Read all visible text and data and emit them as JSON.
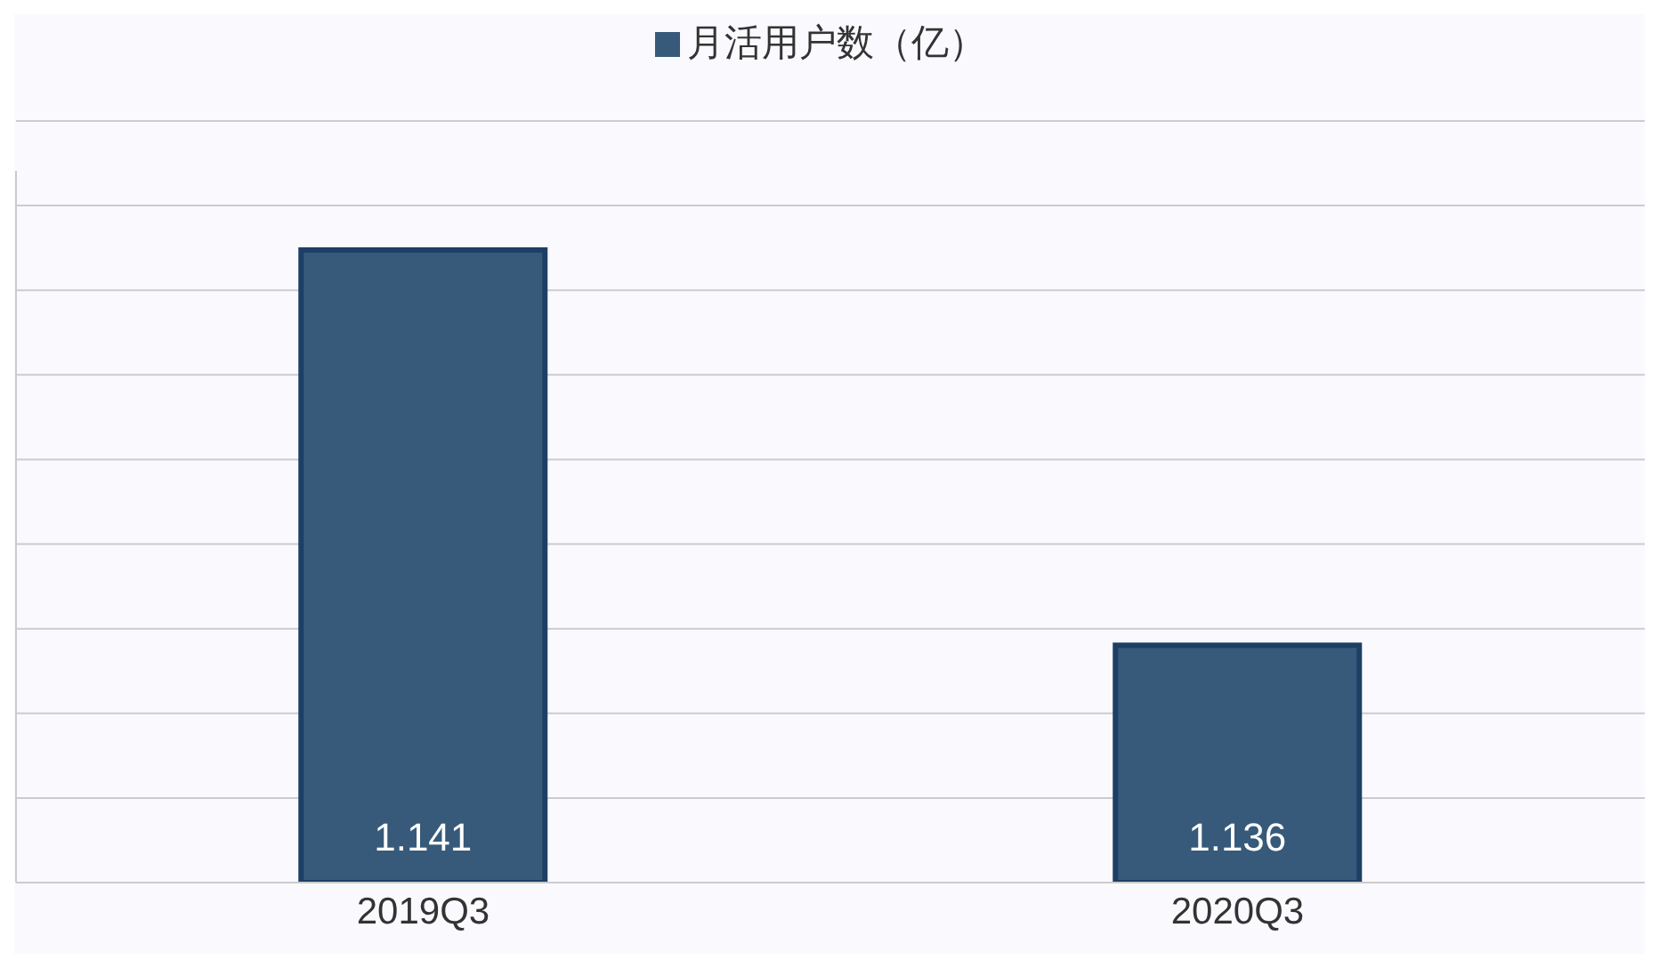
{
  "chart_data": {
    "type": "bar",
    "categories": [
      "2019Q3",
      "2020Q3"
    ],
    "series": [
      {
        "name": "月活用户数（亿）",
        "color": "#375a7a",
        "values": [
          1.141,
          1.136
        ]
      }
    ],
    "ylim": [
      1.133,
      1.142
    ],
    "tick_labels": "x",
    "grid": "y",
    "legend": "top",
    "data_labels": true
  }
}
